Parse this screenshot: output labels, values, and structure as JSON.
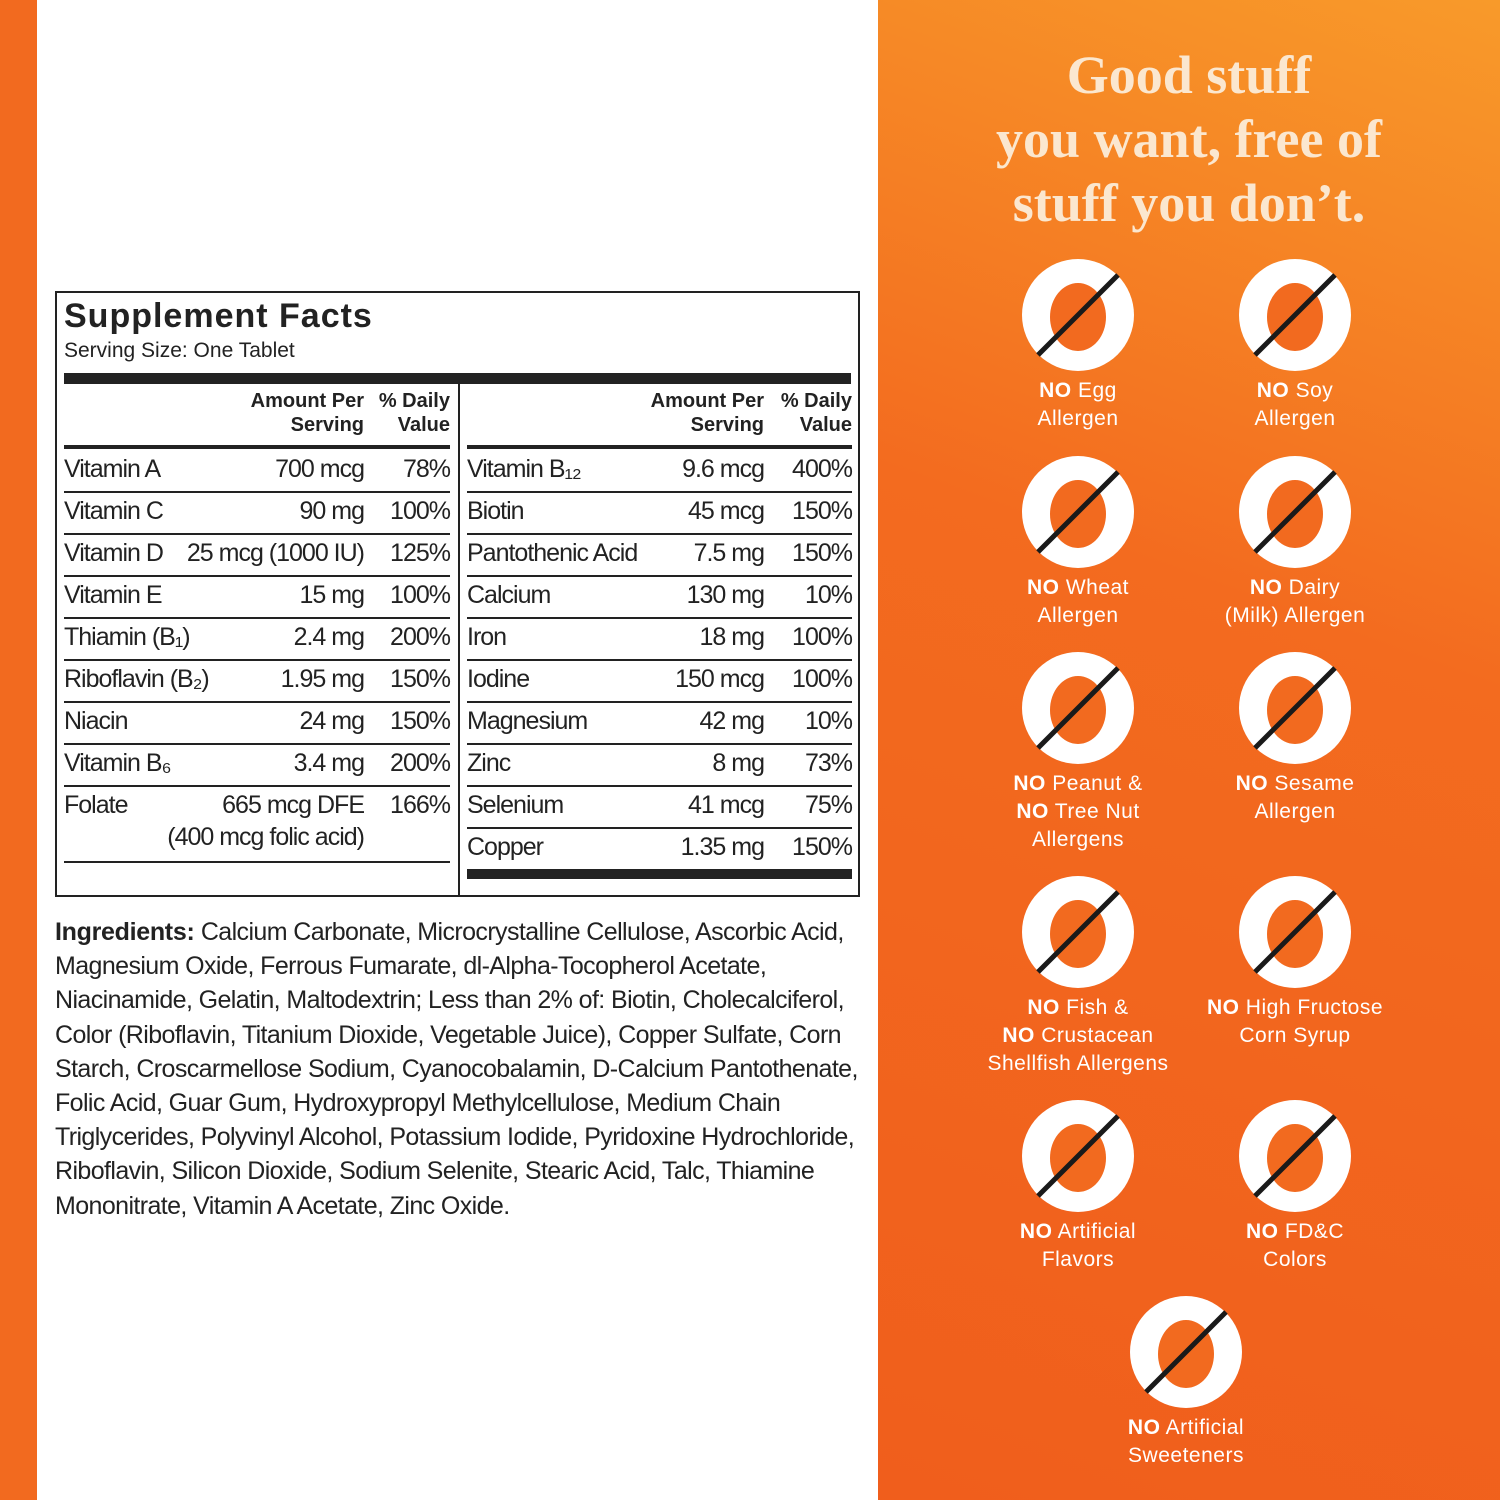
{
  "facts": {
    "title": "Supplement Facts",
    "serving": "Serving Size: One Tablet",
    "headers": {
      "amount": "Amount Per Serving",
      "dv": "% Daily Value"
    },
    "left": [
      {
        "name": "Vitamin A",
        "amount": "700 mcg",
        "dv": "78%"
      },
      {
        "name": "Vitamin C",
        "amount": "90 mg",
        "dv": "100%"
      },
      {
        "name": "Vitamin D",
        "amount": "25 mcg (1000 IU)",
        "dv": "125%"
      },
      {
        "name": "Vitamin E",
        "amount": "15 mg",
        "dv": "100%"
      },
      {
        "name": "Thiamin (B₁)",
        "amount": "2.4 mg",
        "dv": "200%"
      },
      {
        "name": "Riboflavin (B₂)",
        "amount": "1.95 mg",
        "dv": "150%"
      },
      {
        "name": "Niacin",
        "amount": "24 mg",
        "dv": "150%"
      },
      {
        "name": "Vitamin B₆",
        "amount": "3.4 mg",
        "dv": "200%"
      },
      {
        "name": "Folate",
        "amount": "665 mcg DFE",
        "note": "(400 mcg folic acid)",
        "dv": "166%"
      }
    ],
    "right": [
      {
        "name": "Vitamin B₁₂",
        "amount": "9.6 mcg",
        "dv": "400%"
      },
      {
        "name": "Biotin",
        "amount": "45 mcg",
        "dv": "150%"
      },
      {
        "name": "Pantothenic Acid",
        "amount": "7.5 mg",
        "dv": "150%"
      },
      {
        "name": "Calcium",
        "amount": "130 mg",
        "dv": "10%"
      },
      {
        "name": "Iron",
        "amount": "18 mg",
        "dv": "100%"
      },
      {
        "name": "Iodine",
        "amount": "150 mcg",
        "dv": "100%"
      },
      {
        "name": "Magnesium",
        "amount": "42 mg",
        "dv": "10%"
      },
      {
        "name": "Zinc",
        "amount": "8 mg",
        "dv": "73%"
      },
      {
        "name": "Selenium",
        "amount": "41 mcg",
        "dv": "75%"
      },
      {
        "name": "Copper",
        "amount": "1.35 mg",
        "dv": "150%"
      }
    ]
  },
  "ingredients": {
    "label": "Ingredients:",
    "text": "Calcium Carbonate, Microcrystalline Cellulose, Ascorbic Acid, Magnesium Oxide, Ferrous Fumarate, dl-Alpha-Tocopherol Acetate, Niacinamide, Gelatin, Maltodextrin; Less than 2% of: Biotin, Cholecalciferol, Color (Riboflavin, Titanium Dioxide, Vegetable Juice), Copper Sulfate, Corn Starch, Croscarmellose Sodium, Cyanocobalamin, D-Calcium Pantothenate, Folic Acid, Guar Gum, Hydroxypropyl Methylcellulose, Medium Chain Triglycerides, Polyvinyl Alcohol, Potassium Iodide, Pyridoxine Hydrochloride, Riboflavin, Silicon Dioxide, Sodium Selenite, Stearic Acid, Talc, Thiamine Mononitrate, Vitamin A Acetate, Zinc Oxide."
  },
  "heading": [
    "Good stuff",
    "you want, free of",
    "stuff you don’t."
  ],
  "badges": [
    {
      "lines": [
        "NO Egg",
        "Allergen"
      ]
    },
    {
      "lines": [
        "NO Soy",
        "Allergen"
      ]
    },
    {
      "lines": [
        "NO Wheat",
        "Allergen"
      ]
    },
    {
      "lines": [
        "NO Dairy",
        "(Milk) Allergen"
      ]
    },
    {
      "lines": [
        "NO Peanut &",
        "NO Tree Nut",
        "Allergens"
      ]
    },
    {
      "lines": [
        "NO Sesame",
        "Allergen"
      ]
    },
    {
      "lines": [
        "NO Fish &",
        "NO Crustacean",
        "Shellfish Allergens"
      ]
    },
    {
      "lines": [
        "NO High Fructose",
        "Corn Syrup"
      ]
    },
    {
      "lines": [
        "NO Artificial",
        "Flavors"
      ]
    },
    {
      "lines": [
        "NO FD&C",
        "Colors"
      ]
    },
    {
      "lines": [
        "NO Artificial",
        "Sweeteners"
      ]
    }
  ]
}
